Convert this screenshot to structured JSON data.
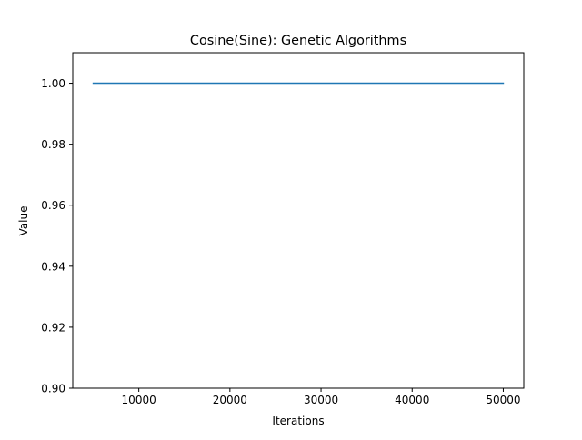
{
  "chart_data": {
    "type": "line",
    "title": "Cosine(Sine): Genetic Algorithms",
    "xlabel": "Iterations",
    "ylabel": "Value",
    "xlim": [
      2750,
      52250
    ],
    "ylim": [
      0.9,
      1.01
    ],
    "xticks": [
      10000,
      20000,
      30000,
      40000,
      50000
    ],
    "xtick_labels": [
      "10000",
      "20000",
      "30000",
      "40000",
      "50000"
    ],
    "yticks": [
      0.9,
      0.92,
      0.94,
      0.96,
      0.98,
      1.0
    ],
    "ytick_labels": [
      "0.90",
      "0.92",
      "0.94",
      "0.96",
      "0.98",
      "1.00"
    ],
    "grid": false,
    "legend": "none",
    "series": [
      {
        "color": "#1f77b4",
        "x": [
          5000,
          10000,
          15000,
          20000,
          25000,
          30000,
          35000,
          40000,
          45000,
          50000
        ],
        "y": [
          1.0,
          1.0,
          1.0,
          1.0,
          1.0,
          1.0,
          1.0,
          1.0,
          1.0,
          1.0
        ]
      }
    ]
  }
}
